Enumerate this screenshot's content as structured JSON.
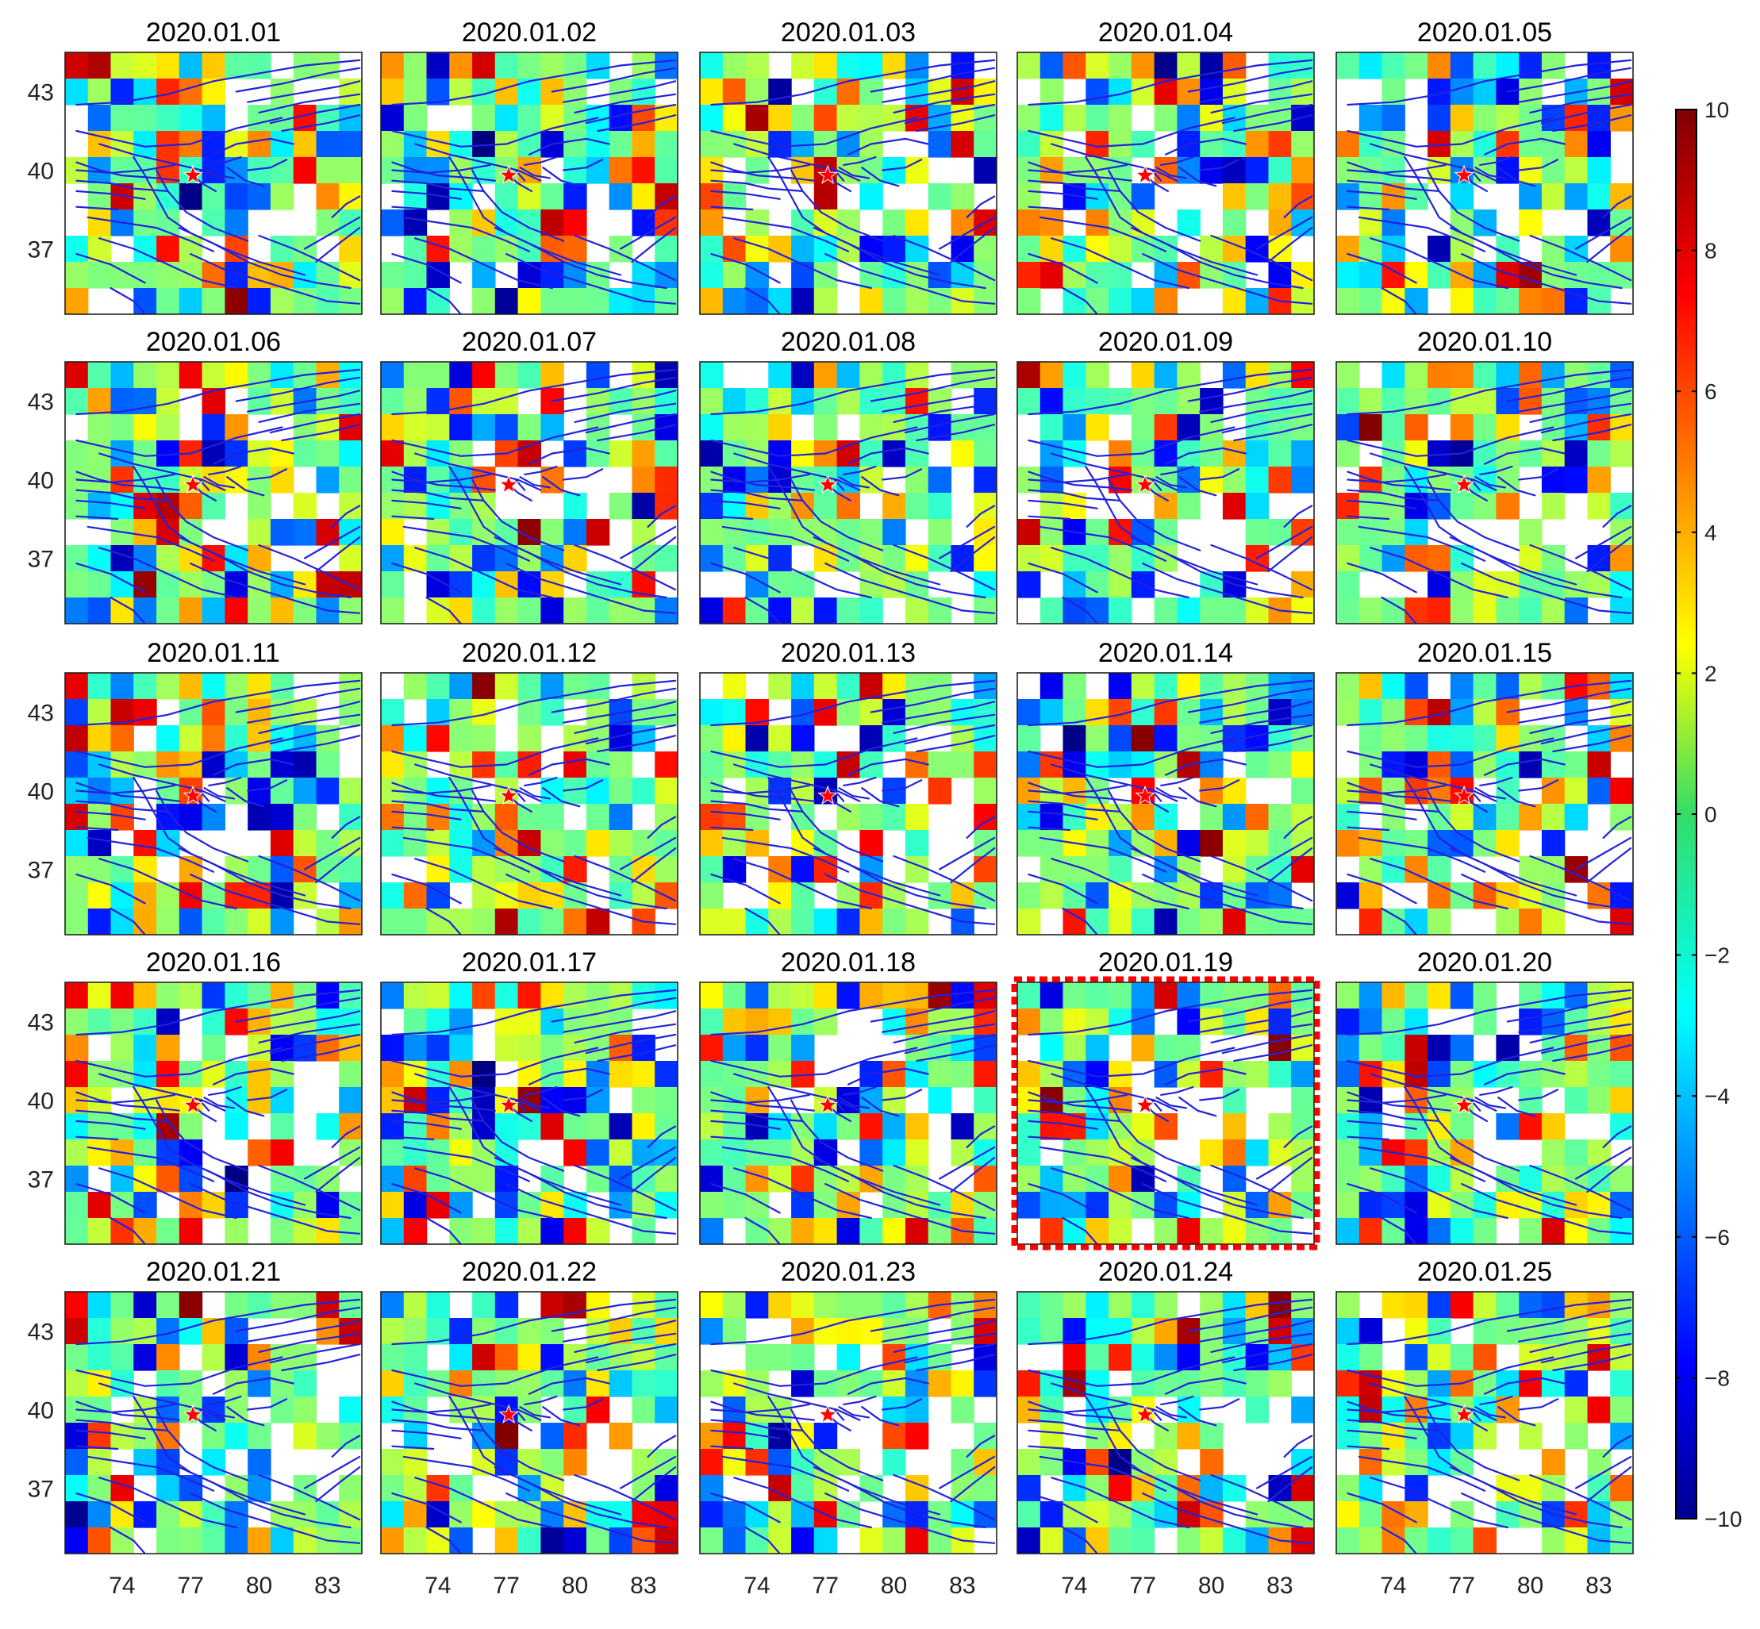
{
  "chart_data": {
    "type": "heatmap",
    "description_layout": "5x5 grid of daily anomaly maps",
    "panels": [
      {
        "title": "2020.01.01",
        "highlighted": false
      },
      {
        "title": "2020.01.02",
        "highlighted": false
      },
      {
        "title": "2020.01.03",
        "highlighted": false
      },
      {
        "title": "2020.01.04",
        "highlighted": false
      },
      {
        "title": "2020.01.05",
        "highlighted": false
      },
      {
        "title": "2020.01.06",
        "highlighted": false
      },
      {
        "title": "2020.01.07",
        "highlighted": false
      },
      {
        "title": "2020.01.08",
        "highlighted": false
      },
      {
        "title": "2020.01.09",
        "highlighted": false
      },
      {
        "title": "2020.01.10",
        "highlighted": false
      },
      {
        "title": "2020.01.11",
        "highlighted": false
      },
      {
        "title": "2020.01.12",
        "highlighted": false
      },
      {
        "title": "2020.01.13",
        "highlighted": false
      },
      {
        "title": "2020.01.14",
        "highlighted": false
      },
      {
        "title": "2020.01.15",
        "highlighted": false
      },
      {
        "title": "2020.01.16",
        "highlighted": false
      },
      {
        "title": "2020.01.17",
        "highlighted": false
      },
      {
        "title": "2020.01.18",
        "highlighted": false
      },
      {
        "title": "2020.01.19",
        "highlighted": true
      },
      {
        "title": "2020.01.20",
        "highlighted": false
      },
      {
        "title": "2020.01.21",
        "highlighted": false
      },
      {
        "title": "2020.01.22",
        "highlighted": false
      },
      {
        "title": "2020.01.23",
        "highlighted": false
      },
      {
        "title": "2020.01.24",
        "highlighted": false
      },
      {
        "title": "2020.01.25",
        "highlighted": false
      }
    ],
    "x_ticks": [
      "74",
      "77",
      "80",
      "83"
    ],
    "y_ticks": [
      "43",
      "40",
      "37"
    ],
    "xlim": [
      71.5,
      84.5
    ],
    "ylim": [
      34.5,
      44.5
    ],
    "epicenter": {
      "lon": 77.1,
      "lat": 39.8
    },
    "colorbar": {
      "ticks": [
        "10",
        "8",
        "6",
        "4",
        "2",
        "0",
        "−2",
        "−4",
        "−6",
        "−8",
        "−10"
      ],
      "range": [
        -10,
        10
      ],
      "colormap": "jet"
    },
    "colors": {
      "fault": "#2222dd",
      "epicenter": "#ff0000",
      "highlight": "#ff0000"
    }
  }
}
